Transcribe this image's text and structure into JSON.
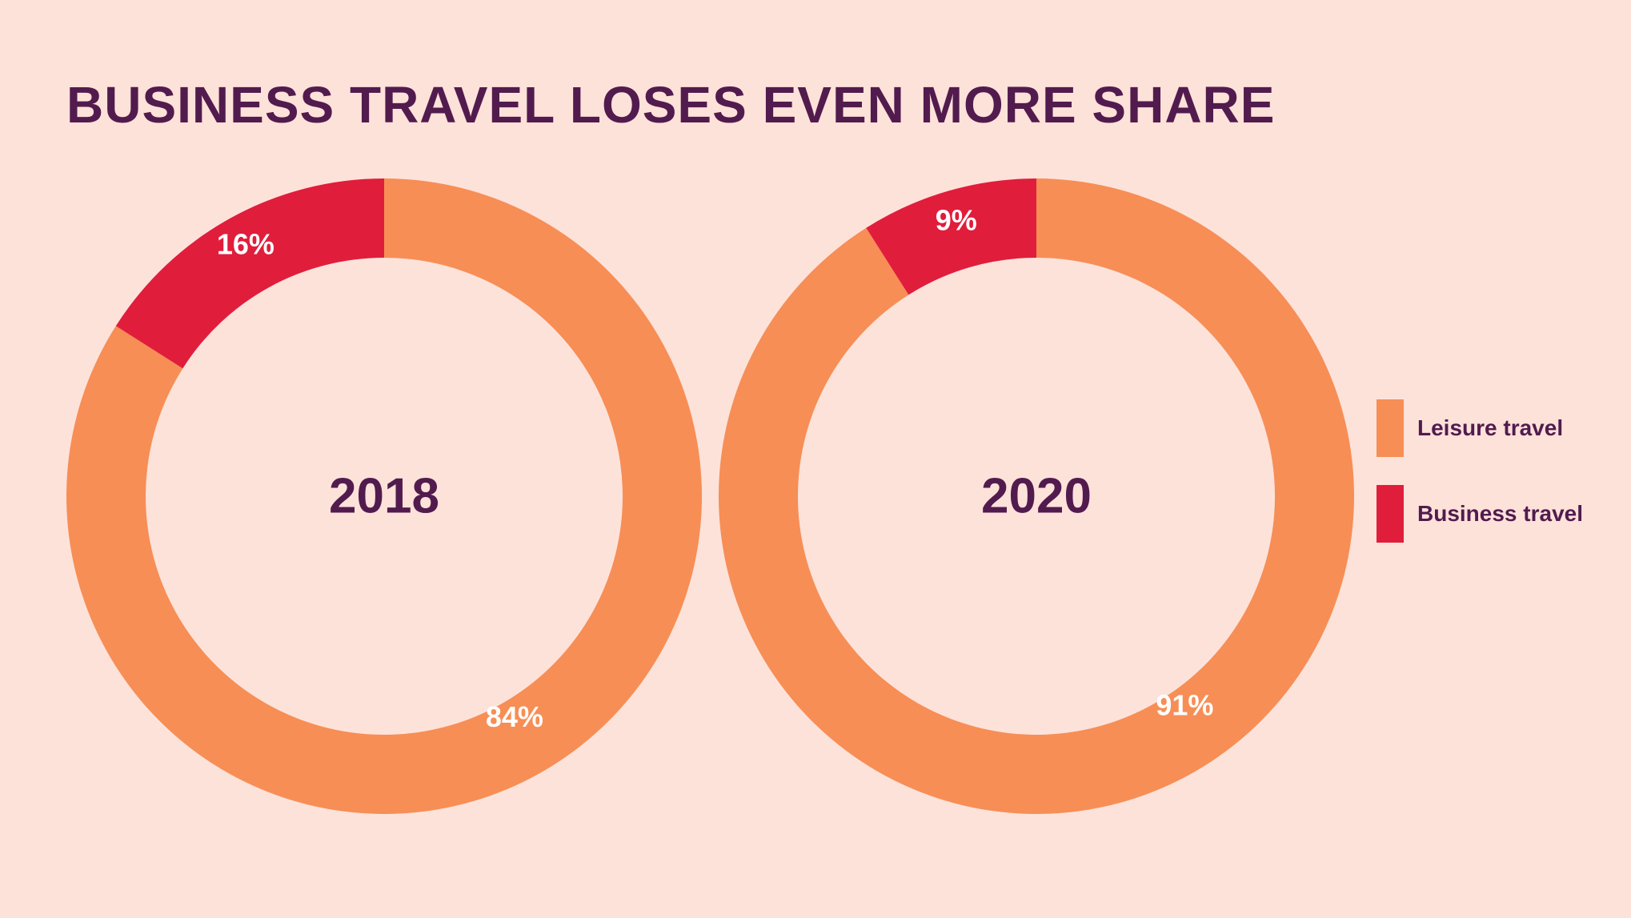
{
  "chart_data": {
    "type": "pie",
    "title": "BUSINESS TRAVEL LOSES EVEN MORE SHARE",
    "legend_position": "right",
    "series_names": [
      "Leisure travel",
      "Business travel"
    ],
    "colors": {
      "Leisure travel": "#f78e55",
      "Business travel": "#e11d3c",
      "title": "#521b4e",
      "background": "#fde2da",
      "slice_label": "#ffffff"
    },
    "charts": [
      {
        "label": "2018",
        "slices": [
          {
            "name": "Leisure travel",
            "value": 84,
            "label": "84%"
          },
          {
            "name": "Business travel",
            "value": 16,
            "label": "16%"
          }
        ]
      },
      {
        "label": "2020",
        "slices": [
          {
            "name": "Leisure travel",
            "value": 91,
            "label": "91%"
          },
          {
            "name": "Business travel",
            "value": 9,
            "label": "9%"
          }
        ]
      }
    ]
  }
}
